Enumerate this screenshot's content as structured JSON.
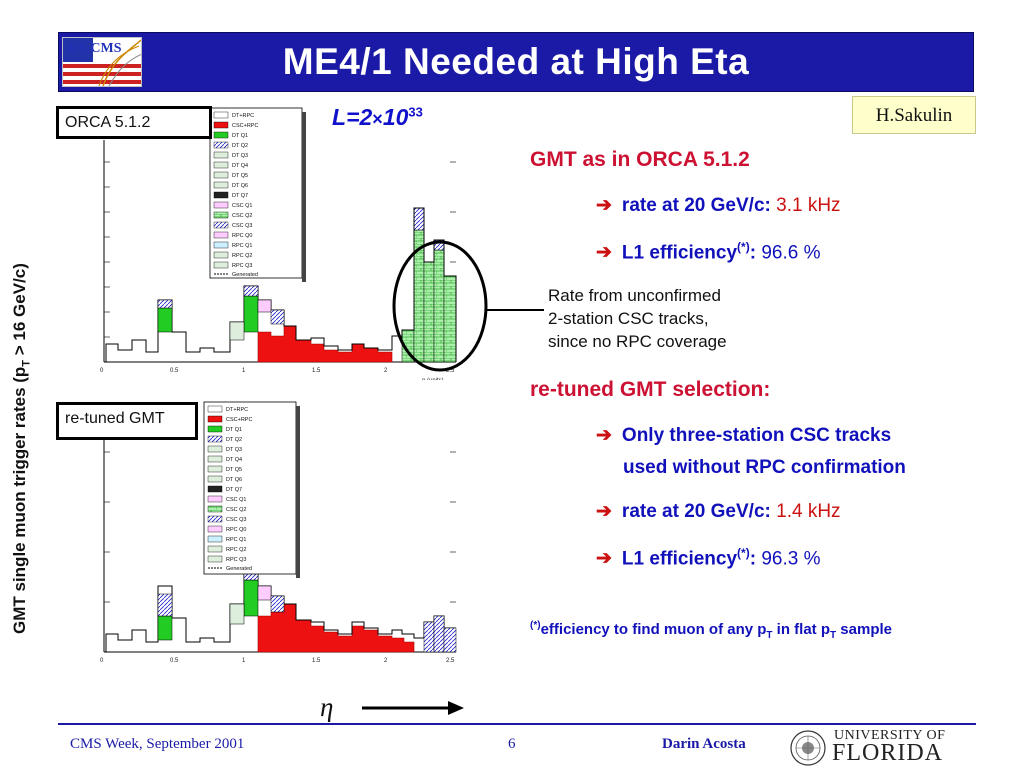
{
  "title": "ME4/1 Needed at High Eta",
  "logo_text": "US CMS",
  "author": "H.Sakulin",
  "luminosity": {
    "symbol": "L",
    "eq": "=2",
    "times": "×",
    "base": "10",
    "exp": "33"
  },
  "vertical_label": {
    "pre": "GMT single muon trigger rates (p",
    "sub": "T",
    "post": " > 16 GeV/c)"
  },
  "plot_labels": {
    "top": "ORCA 5.1.2",
    "bottom": "re-tuned GMT"
  },
  "eta_label": "η",
  "annotation": {
    "lines": [
      "Rate from unconfirmed",
      "2-station CSC tracks,",
      "since no RPC coverage"
    ]
  },
  "section1": {
    "heading": "GMT as in ORCA 5.1.2",
    "rate_label": "rate at 20 GeV/c:",
    "rate_value": "3.1 kHz",
    "eff_label": "L1 efficiency",
    "eff_sup": "(*)",
    "eff_value": "96.6 %"
  },
  "section2": {
    "heading": "re-tuned GMT selection:",
    "line1": "Only three-station CSC tracks",
    "line2": "used without RPC confirmation",
    "rate_label": "rate at 20 GeV/c:",
    "rate_value": "1.4 kHz",
    "eff_label": "L1 efficiency",
    "eff_sup": "(*)",
    "eff_value": "96.3 %"
  },
  "footnote": {
    "sup": "(*)",
    "text1": "efficiency to find muon of any p",
    "sub1": "T",
    "text2": " in flat p",
    "sub2": "T",
    "text3": " sample"
  },
  "footer": {
    "left": "CMS Week, September 2001",
    "page": "6",
    "right": "Darin Acosta",
    "univ_line1": "UNIVERSITY OF",
    "univ_line2": "FLORIDA"
  },
  "colors": {
    "title_bg": "#1a1aa6",
    "accent_red": "#cc1133",
    "text_blue": "#1111bb"
  }
}
